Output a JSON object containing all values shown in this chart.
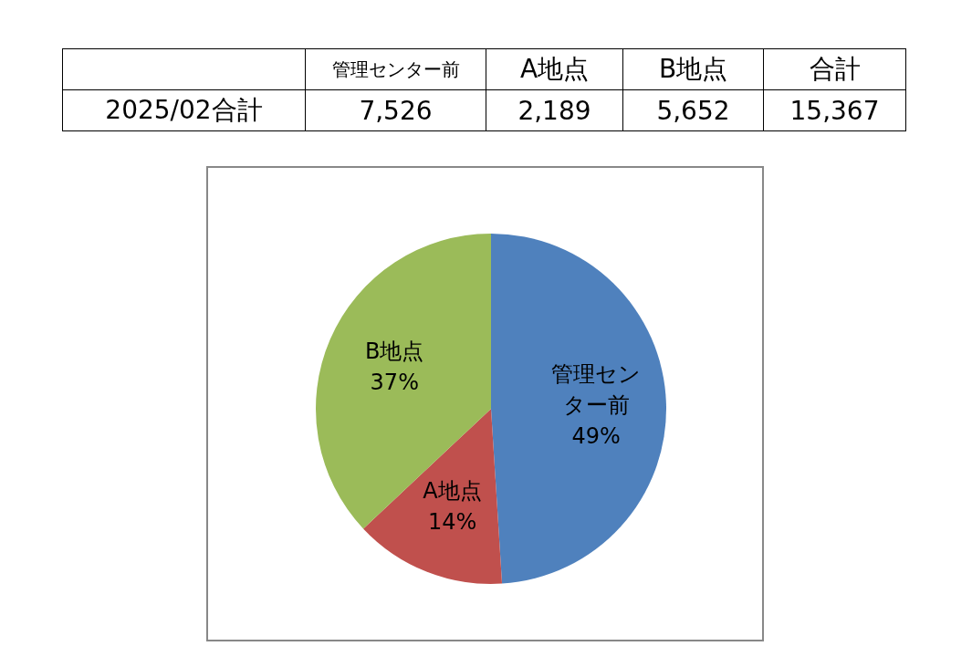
{
  "chart_data": [
    {
      "type": "other",
      "categories": [
        "管理センター前",
        "A地点",
        "B地点",
        "合計"
      ],
      "values": [
        7526,
        2189,
        5652,
        15367
      ],
      "value_labels": [
        "7,526",
        "2,189",
        "5,652",
        "15,367"
      ],
      "annotations": [
        "2025/02合計"
      ]
    },
    {
      "type": "pie",
      "categories": [
        "管理センター前",
        "A地点",
        "B地点"
      ],
      "values": [
        49,
        14,
        37
      ],
      "colors": [
        "#4f81bd",
        "#c0504d",
        "#9bbb59"
      ],
      "value_labels": [
        "49%",
        "14%",
        "37%"
      ],
      "legend": false
    }
  ]
}
